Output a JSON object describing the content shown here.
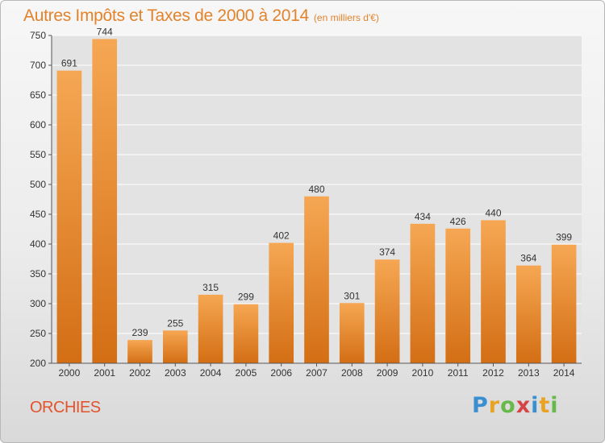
{
  "chart_data": {
    "type": "bar",
    "title": "Autres Impôts et Taxes de 2000 à 2014",
    "subtitle": "(en milliers d'€)",
    "categories": [
      "2000",
      "2001",
      "2002",
      "2003",
      "2004",
      "2005",
      "2006",
      "2007",
      "2008",
      "2009",
      "2010",
      "2011",
      "2012",
      "2013",
      "2014"
    ],
    "values": [
      691,
      744,
      239,
      255,
      315,
      299,
      402,
      480,
      301,
      374,
      434,
      426,
      440,
      364,
      399
    ],
    "ylim": [
      200,
      750
    ],
    "yticks": [
      200,
      250,
      300,
      350,
      400,
      450,
      500,
      550,
      600,
      650,
      700,
      750
    ],
    "grid": true,
    "bar_color": "#f0902e"
  },
  "location": "ORCHIES",
  "logo": "Proxiti",
  "logo_letters": [
    "P",
    "r",
    "o",
    "x",
    "i",
    "t",
    "i"
  ]
}
